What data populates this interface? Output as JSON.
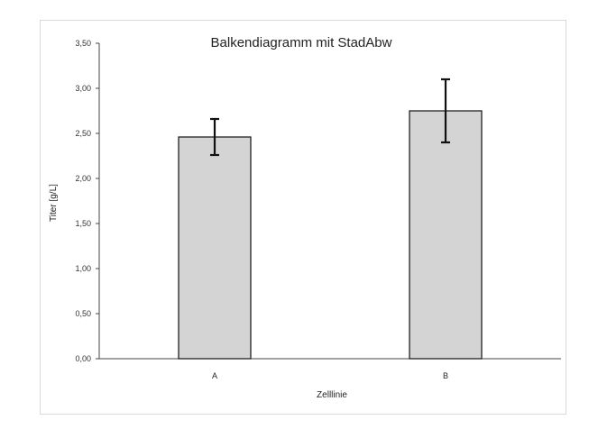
{
  "chart_data": {
    "type": "bar",
    "title": "Balkendiagramm mit StadAbw",
    "xlabel": "Zelllinie",
    "ylabel": "Titer [g/L]",
    "categories": [
      "A",
      "B"
    ],
    "values": [
      2.46,
      2.75
    ],
    "error": [
      0.2,
      0.35
    ],
    "ylim": [
      0,
      3.5
    ],
    "yticks": [
      "0,00",
      "0,50",
      "1,00",
      "1,50",
      "2,00",
      "2,50",
      "3,00",
      "3,50"
    ],
    "ytick_values": [
      0,
      0.5,
      1,
      1.5,
      2,
      2.5,
      3,
      3.5
    ],
    "grid": false,
    "bar_color": "#d4d4d4",
    "bar_edge_color": "#222222"
  }
}
